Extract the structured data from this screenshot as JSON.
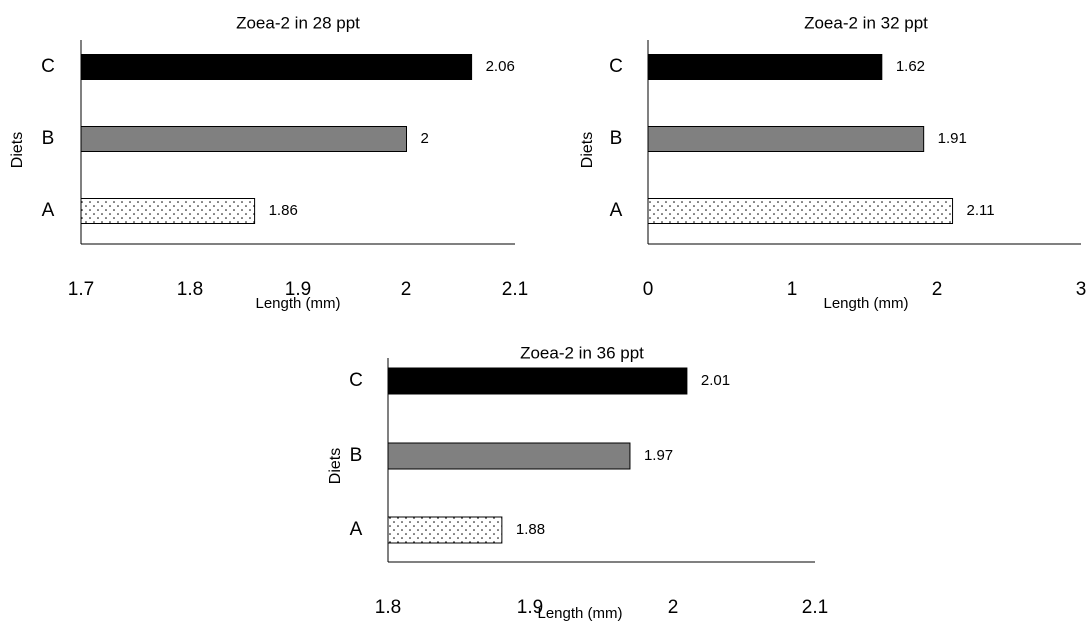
{
  "chart_data": [
    {
      "type": "bar",
      "orientation": "horizontal",
      "title": "Zoea-2 in 28 ppt",
      "xlabel": "Length (mm)",
      "ylabel": "Diets",
      "categories": [
        "A",
        "B",
        "C"
      ],
      "values": [
        1.86,
        2,
        2.06
      ],
      "value_labels": [
        "1.86",
        "2",
        "2.06"
      ],
      "xlim": [
        1.7,
        2.1
      ],
      "xticks": [
        "1.7",
        "1.8",
        "1.9",
        "2",
        "2.1"
      ],
      "fills": [
        "dotted",
        "#808080",
        "#000000"
      ],
      "grid": false,
      "legend": "none"
    },
    {
      "type": "bar",
      "orientation": "horizontal",
      "title": "Zoea-2 in 32 ppt",
      "xlabel": "Length (mm)",
      "ylabel": "Diets",
      "categories": [
        "A",
        "B",
        "C"
      ],
      "values": [
        2.11,
        1.91,
        1.62
      ],
      "value_labels": [
        "2.11",
        "1.91",
        "1.62"
      ],
      "xlim": [
        0,
        3
      ],
      "xticks": [
        "0",
        "1",
        "2",
        "3"
      ],
      "fills": [
        "dotted",
        "#808080",
        "#000000"
      ],
      "grid": false,
      "legend": "none"
    },
    {
      "type": "bar",
      "orientation": "horizontal",
      "title": "Zoea-2 in 36 ppt",
      "xlabel": "Length (mm)",
      "ylabel": "Diets",
      "categories": [
        "A",
        "B",
        "C"
      ],
      "values": [
        1.88,
        1.97,
        2.01
      ],
      "value_labels": [
        "1.88",
        "1.97",
        "2.01"
      ],
      "xlim": [
        1.8,
        2.1
      ],
      "xticks": [
        "1.8",
        "1.9",
        "2",
        "2.1"
      ],
      "fills": [
        "dotted",
        "#808080",
        "#000000"
      ],
      "grid": false,
      "legend": "none"
    }
  ]
}
